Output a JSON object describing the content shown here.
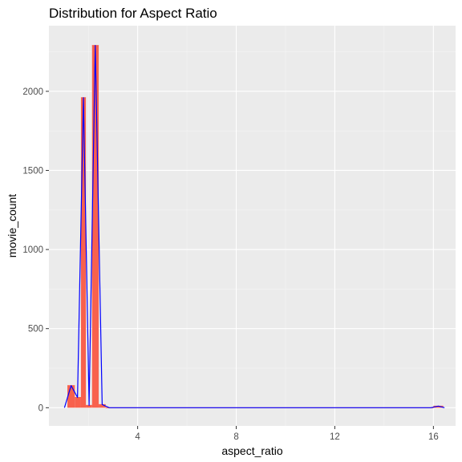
{
  "chart_data": {
    "type": "bar",
    "title": "Distribution for Aspect Ratio",
    "xlabel": "aspect_ratio",
    "ylabel": "movie_count",
    "xlim": [
      0.4,
      16.9
    ],
    "ylim": [
      -115,
      2415
    ],
    "x_ticks": [
      4,
      8,
      12,
      16
    ],
    "y_ticks": [
      0,
      500,
      1000,
      1500,
      2000
    ],
    "grid": true,
    "colors": {
      "panel_background": "#ebebeb",
      "grid_major": "#ffffff",
      "grid_minor": "#f5f5f5",
      "bar_fill": "#f8614d",
      "frequency_line": "#0000ff",
      "tick_mark": "#333333",
      "tick_label": "#4d4d4d"
    },
    "bars": [
      {
        "x_start": 1.15,
        "x_end": 1.45,
        "value": 140
      },
      {
        "x_start": 1.45,
        "x_end": 1.7,
        "value": 65
      },
      {
        "x_start": 1.7,
        "x_end": 1.9,
        "value": 1960
      },
      {
        "x_start": 1.9,
        "x_end": 2.15,
        "value": 15
      },
      {
        "x_start": 2.15,
        "x_end": 2.42,
        "value": 2290
      },
      {
        "x_start": 2.42,
        "x_end": 2.7,
        "value": 20
      },
      {
        "x_start": 2.7,
        "x_end": 16.0,
        "value": 0
      },
      {
        "x_start": 16.0,
        "x_end": 16.4,
        "value": 10
      }
    ],
    "frequency_polygon": {
      "x": [
        1.03,
        1.3,
        1.56,
        1.8,
        2.03,
        2.28,
        2.56,
        2.85,
        6.0,
        10.0,
        14.0,
        15.9,
        16.2,
        16.45
      ],
      "y": [
        0,
        140,
        65,
        1960,
        15,
        2290,
        20,
        0,
        0,
        0,
        0,
        0,
        10,
        0
      ]
    }
  }
}
